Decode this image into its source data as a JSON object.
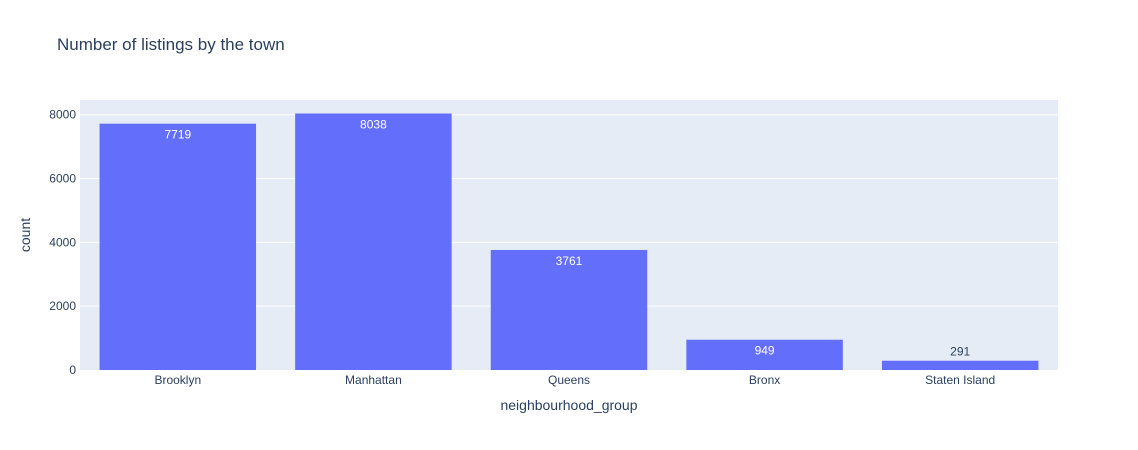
{
  "chart_data": {
    "type": "bar",
    "title": "Number of listings by the town",
    "xlabel": "neighbourhood_group",
    "ylabel": "count",
    "categories": [
      "Brooklyn",
      "Manhattan",
      "Queens",
      "Bronx",
      "Staten Island"
    ],
    "values": [
      7719,
      8038,
      3761,
      949,
      291
    ],
    "ylim": [
      0,
      8461
    ],
    "yticks": [
      0,
      2000,
      4000,
      6000,
      8000
    ],
    "grid": true,
    "legend": "none",
    "colors": {
      "bar": "#636efa",
      "plot_bg": "#e5ecf6",
      "grid": "#ffffff",
      "text": "#2a3f5f",
      "label_inside": "#ffffff",
      "label_outside": "#2a3f5f"
    }
  }
}
